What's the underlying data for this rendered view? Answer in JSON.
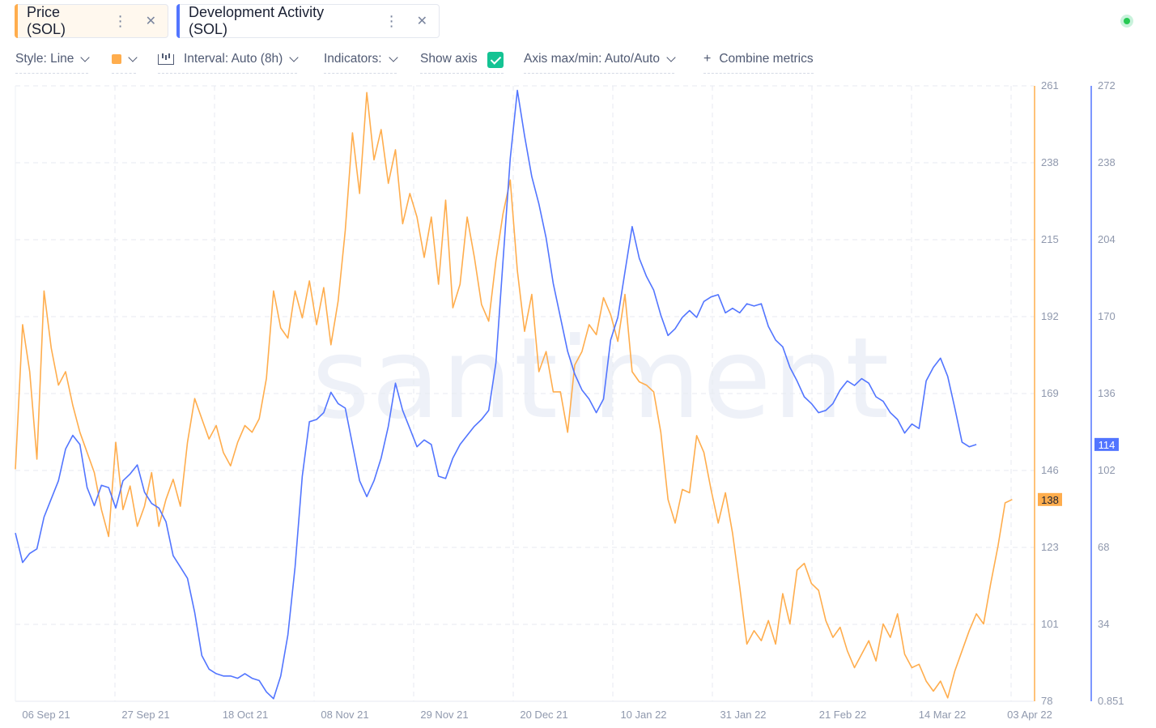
{
  "tabs": [
    {
      "label": "Price (SOL)",
      "color": "#ffad4d"
    },
    {
      "label": "Development Activity (SOL)",
      "color": "#5275ff"
    }
  ],
  "toolbar": {
    "style_label": "Style: Line",
    "interval_label": "Interval: Auto (8h)",
    "indicators_label": "Indicators:",
    "show_axis_label": "Show axis",
    "show_axis_checked": true,
    "axis_range_label": "Axis max/min: Auto/Auto",
    "combine_label": "Combine metrics"
  },
  "watermark": "santiment",
  "chart_data": {
    "type": "line",
    "x": [
      "06 Sep 21",
      "27 Sep 21",
      "18 Oct 21",
      "08 Nov 21",
      "29 Nov 21",
      "20 Dec 21",
      "10 Jan 22",
      "31 Jan 22",
      "21 Feb 22",
      "14 Mar 22",
      "03 Apr 22"
    ],
    "xlim": [
      "2021-09-06",
      "2022-04-03"
    ],
    "grid": true,
    "series": [
      {
        "name": "Price (SOL)",
        "color": "#ffad4d",
        "axis": "right-1",
        "ylim": [
          78,
          261
        ],
        "ticks": [
          78,
          101,
          123,
          146,
          169,
          192,
          215,
          238,
          261
        ],
        "last_value_label": "138",
        "values": [
          [
            0,
            147
          ],
          [
            2,
            190
          ],
          [
            4,
            176
          ],
          [
            6,
            150
          ],
          [
            8,
            200
          ],
          [
            10,
            183
          ],
          [
            12,
            172
          ],
          [
            14,
            176
          ],
          [
            16,
            166
          ],
          [
            18,
            158
          ],
          [
            20,
            152
          ],
          [
            22,
            146
          ],
          [
            24,
            135
          ],
          [
            26,
            127
          ],
          [
            28,
            155
          ],
          [
            30,
            135
          ],
          [
            32,
            142
          ],
          [
            34,
            130
          ],
          [
            36,
            136
          ],
          [
            38,
            146
          ],
          [
            40,
            130
          ],
          [
            42,
            138
          ],
          [
            44,
            144
          ],
          [
            46,
            136
          ],
          [
            48,
            155
          ],
          [
            50,
            168
          ],
          [
            52,
            162
          ],
          [
            54,
            156
          ],
          [
            56,
            160
          ],
          [
            58,
            152
          ],
          [
            60,
            148
          ],
          [
            62,
            155
          ],
          [
            64,
            160
          ],
          [
            66,
            158
          ],
          [
            68,
            162
          ],
          [
            70,
            174
          ],
          [
            72,
            200
          ],
          [
            74,
            189
          ],
          [
            76,
            186
          ],
          [
            78,
            200
          ],
          [
            80,
            192
          ],
          [
            82,
            203
          ],
          [
            84,
            190
          ],
          [
            86,
            201
          ],
          [
            88,
            184
          ],
          [
            90,
            197
          ],
          [
            92,
            218
          ],
          [
            94,
            247
          ],
          [
            96,
            229
          ],
          [
            98,
            259
          ],
          [
            100,
            239
          ],
          [
            102,
            248
          ],
          [
            104,
            232
          ],
          [
            106,
            242
          ],
          [
            108,
            220
          ],
          [
            110,
            229
          ],
          [
            112,
            222
          ],
          [
            114,
            210
          ],
          [
            116,
            222
          ],
          [
            118,
            202
          ],
          [
            120,
            227
          ],
          [
            122,
            195
          ],
          [
            124,
            202
          ],
          [
            126,
            222
          ],
          [
            128,
            210
          ],
          [
            130,
            196
          ],
          [
            132,
            191
          ],
          [
            134,
            209
          ],
          [
            136,
            223
          ],
          [
            138,
            233
          ],
          [
            140,
            206
          ],
          [
            142,
            188
          ],
          [
            144,
            199
          ],
          [
            146,
            176
          ],
          [
            148,
            182
          ],
          [
            150,
            170
          ],
          [
            152,
            170
          ],
          [
            154,
            158
          ],
          [
            156,
            178
          ],
          [
            158,
            182
          ],
          [
            160,
            190
          ],
          [
            162,
            187
          ],
          [
            164,
            198
          ],
          [
            166,
            193
          ],
          [
            168,
            185
          ],
          [
            170,
            199
          ],
          [
            172,
            176
          ],
          [
            174,
            173
          ],
          [
            176,
            172
          ],
          [
            178,
            170
          ],
          [
            180,
            158
          ],
          [
            182,
            138
          ],
          [
            184,
            131
          ],
          [
            186,
            141
          ],
          [
            188,
            140
          ],
          [
            190,
            157
          ],
          [
            192,
            152
          ],
          [
            194,
            141
          ],
          [
            196,
            131
          ],
          [
            198,
            140
          ],
          [
            200,
            128
          ],
          [
            202,
            112
          ],
          [
            204,
            95
          ],
          [
            206,
            99
          ],
          [
            208,
            96
          ],
          [
            210,
            102
          ],
          [
            212,
            95
          ],
          [
            214,
            110
          ],
          [
            216,
            101
          ],
          [
            218,
            117
          ],
          [
            220,
            119
          ],
          [
            222,
            113
          ],
          [
            224,
            111
          ],
          [
            226,
            102
          ],
          [
            228,
            97
          ],
          [
            230,
            100
          ],
          [
            232,
            93
          ],
          [
            234,
            88
          ],
          [
            236,
            92
          ],
          [
            238,
            96
          ],
          [
            240,
            90
          ],
          [
            242,
            101
          ],
          [
            244,
            97
          ],
          [
            246,
            104
          ],
          [
            248,
            92
          ],
          [
            250,
            88
          ],
          [
            252,
            89
          ],
          [
            254,
            84
          ],
          [
            256,
            81
          ],
          [
            258,
            84
          ],
          [
            260,
            79
          ],
          [
            262,
            87
          ],
          [
            264,
            93
          ],
          [
            266,
            99
          ],
          [
            268,
            104
          ],
          [
            270,
            101
          ],
          [
            272,
            113
          ],
          [
            274,
            124
          ],
          [
            276,
            137
          ],
          [
            278,
            138
          ]
        ]
      },
      {
        "name": "Development Activity (SOL)",
        "color": "#5275ff",
        "axis": "right-2",
        "ylim": [
          0.851,
          272
        ],
        "ticks": [
          0.851,
          34,
          68,
          102,
          136,
          170,
          204,
          238,
          272
        ],
        "last_value_label": "114",
        "values": [
          [
            0,
            75
          ],
          [
            2,
            62
          ],
          [
            4,
            66
          ],
          [
            6,
            68
          ],
          [
            8,
            82
          ],
          [
            10,
            90
          ],
          [
            12,
            98
          ],
          [
            14,
            112
          ],
          [
            16,
            118
          ],
          [
            18,
            114
          ],
          [
            20,
            95
          ],
          [
            22,
            87
          ],
          [
            24,
            96
          ],
          [
            26,
            95
          ],
          [
            28,
            86
          ],
          [
            30,
            98
          ],
          [
            32,
            101
          ],
          [
            34,
            105
          ],
          [
            36,
            93
          ],
          [
            38,
            88
          ],
          [
            40,
            86
          ],
          [
            42,
            80
          ],
          [
            44,
            65
          ],
          [
            46,
            60
          ],
          [
            48,
            55
          ],
          [
            50,
            40
          ],
          [
            52,
            21
          ],
          [
            54,
            15
          ],
          [
            56,
            13
          ],
          [
            58,
            12
          ],
          [
            60,
            12
          ],
          [
            62,
            11
          ],
          [
            64,
            13
          ],
          [
            66,
            11
          ],
          [
            68,
            10
          ],
          [
            70,
            5
          ],
          [
            72,
            2
          ],
          [
            74,
            12
          ],
          [
            76,
            30
          ],
          [
            78,
            60
          ],
          [
            80,
            100
          ],
          [
            82,
            124
          ],
          [
            84,
            125
          ],
          [
            86,
            128
          ],
          [
            88,
            137
          ],
          [
            90,
            132
          ],
          [
            92,
            130
          ],
          [
            94,
            114
          ],
          [
            96,
            98
          ],
          [
            98,
            91
          ],
          [
            100,
            98
          ],
          [
            102,
            108
          ],
          [
            104,
            122
          ],
          [
            106,
            141
          ],
          [
            108,
            129
          ],
          [
            110,
            121
          ],
          [
            112,
            113
          ],
          [
            114,
            116
          ],
          [
            116,
            114
          ],
          [
            118,
            100
          ],
          [
            120,
            99
          ],
          [
            122,
            108
          ],
          [
            124,
            114
          ],
          [
            126,
            118
          ],
          [
            128,
            122
          ],
          [
            130,
            125
          ],
          [
            132,
            129
          ],
          [
            134,
            150
          ],
          [
            136,
            195
          ],
          [
            138,
            240
          ],
          [
            140,
            270
          ],
          [
            142,
            250
          ],
          [
            144,
            232
          ],
          [
            146,
            220
          ],
          [
            148,
            205
          ],
          [
            150,
            185
          ],
          [
            152,
            170
          ],
          [
            154,
            155
          ],
          [
            156,
            145
          ],
          [
            158,
            138
          ],
          [
            160,
            134
          ],
          [
            162,
            128
          ],
          [
            164,
            134
          ],
          [
            166,
            160
          ],
          [
            168,
            170
          ],
          [
            170,
            190
          ],
          [
            172,
            210
          ],
          [
            174,
            196
          ],
          [
            176,
            188
          ],
          [
            178,
            182
          ],
          [
            180,
            171
          ],
          [
            182,
            162
          ],
          [
            184,
            165
          ],
          [
            186,
            170
          ],
          [
            188,
            173
          ],
          [
            190,
            170
          ],
          [
            192,
            177
          ],
          [
            194,
            179
          ],
          [
            196,
            180
          ],
          [
            198,
            172
          ],
          [
            200,
            174
          ],
          [
            202,
            172
          ],
          [
            204,
            176
          ],
          [
            206,
            175
          ],
          [
            208,
            176
          ],
          [
            210,
            166
          ],
          [
            212,
            160
          ],
          [
            214,
            157
          ],
          [
            216,
            148
          ],
          [
            218,
            142
          ],
          [
            220,
            135
          ],
          [
            222,
            132
          ],
          [
            224,
            128
          ],
          [
            226,
            129
          ],
          [
            228,
            132
          ],
          [
            230,
            138
          ],
          [
            232,
            142
          ],
          [
            234,
            140
          ],
          [
            236,
            143
          ],
          [
            238,
            141
          ],
          [
            240,
            135
          ],
          [
            242,
            133
          ],
          [
            244,
            128
          ],
          [
            246,
            125
          ],
          [
            248,
            119
          ],
          [
            250,
            123
          ],
          [
            252,
            121
          ],
          [
            254,
            142
          ],
          [
            256,
            148
          ],
          [
            258,
            152
          ],
          [
            260,
            144
          ],
          [
            262,
            130
          ],
          [
            264,
            115
          ],
          [
            266,
            113
          ],
          [
            268,
            114
          ]
        ]
      }
    ],
    "x_index_range": [
      0,
      284
    ]
  }
}
